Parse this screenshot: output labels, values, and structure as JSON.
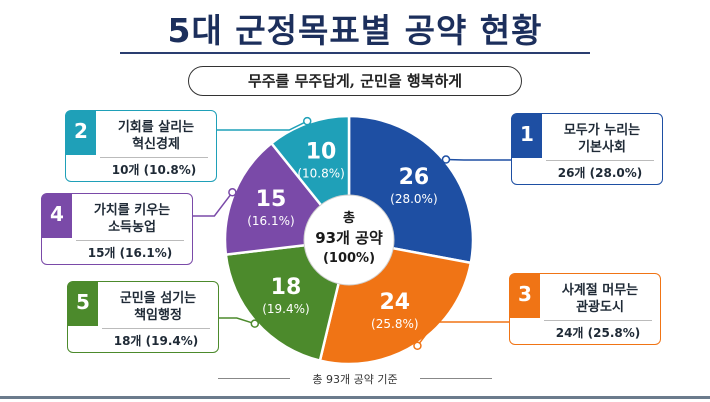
{
  "title": "5대 군정목표별 공약 현황",
  "slogan": "무주를 무주답게, 군민을 행복하게",
  "footer_note": "총 93개 공약 기준",
  "center": {
    "line1": "총",
    "line2": "93개 공약",
    "line3": "(100%)"
  },
  "chart_data": {
    "type": "pie",
    "title": "5대 군정목표별 공약 현황",
    "total": 93,
    "slices": [
      {
        "number": "1",
        "name": "모두가 누리는 기본사회",
        "name_lines": [
          "모두가 누리는",
          "기본사회"
        ],
        "value": 26,
        "value_label": "26",
        "percent_label": "(28.0%)",
        "stat": "26개 (28.0%)",
        "color": "#1e4fa3"
      },
      {
        "number": "3",
        "name": "사계절 머무는 관광도시",
        "name_lines": [
          "사계절 머무는",
          "관광도시"
        ],
        "value": 24,
        "value_label": "24",
        "percent_label": "(25.8%)",
        "stat": "24개 (25.8%)",
        "color": "#f07415"
      },
      {
        "number": "5",
        "name": "군민을 섬기는 책임행정",
        "name_lines": [
          "군민을 섬기는",
          "책임행정"
        ],
        "value": 18,
        "value_label": "18",
        "percent_label": "(19.4%)",
        "stat": "18개 (19.4%)",
        "color": "#4c8a2c"
      },
      {
        "number": "4",
        "name": "가치를 키우는 소득농업",
        "name_lines": [
          "가치를 키우는",
          "소득농업"
        ],
        "value": 15,
        "value_label": "15",
        "percent_label": "(16.1%)",
        "stat": "15개 (16.1%)",
        "color": "#7a4aa8"
      },
      {
        "number": "2",
        "name": "기회를 살리는 혁신경제",
        "name_lines": [
          "기회를 살리는",
          "혁신경제"
        ],
        "value": 10,
        "value_label": "10",
        "percent_label": "(10.8%)",
        "stat": "10개 (10.8%)",
        "color": "#1fa0b8"
      }
    ]
  }
}
